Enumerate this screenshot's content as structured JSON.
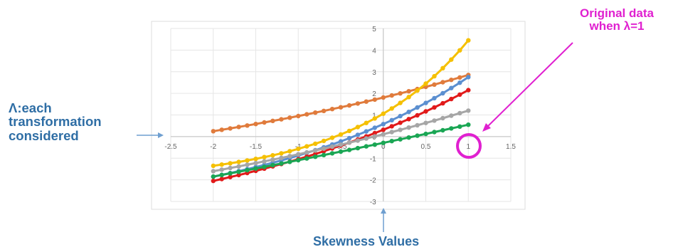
{
  "chart_data": {
    "type": "line",
    "xlim": [
      -2.5,
      1.5
    ],
    "ylim": [
      -3,
      5
    ],
    "x_ticks": [
      "-2.5",
      "-2",
      "-1.5",
      "-1",
      "-0.5",
      "0",
      "0.5",
      "1",
      "1.5"
    ],
    "y_ticks": [
      "-3",
      "-2",
      "-1",
      "0",
      "1",
      "2",
      "3",
      "4",
      "5"
    ],
    "grid": true,
    "series": [
      {
        "color": "#e07b3c",
        "x_range": [
          -2,
          1
        ],
        "points": 31,
        "start_y": 0.25,
        "end_y": 2.85,
        "curvature": 0.6
      },
      {
        "color": "#f5c000",
        "x_range": [
          -2,
          1
        ],
        "points": 31,
        "start_y": -1.35,
        "end_y": 4.45,
        "curvature": 2.2
      },
      {
        "color": "#5b8fd0",
        "x_range": [
          -2,
          1
        ],
        "points": 31,
        "start_y": -1.85,
        "end_y": 2.75,
        "curvature": 1.2
      },
      {
        "color": "#e11a1a",
        "x_range": [
          -2,
          1
        ],
        "points": 31,
        "start_y": -2.05,
        "end_y": 2.15,
        "curvature": 0.9
      },
      {
        "color": "#a6a6a6",
        "x_range": [
          -2,
          1
        ],
        "points": 31,
        "start_y": -1.6,
        "end_y": 1.2,
        "curvature": 0.5
      },
      {
        "color": "#1aa654",
        "x_range": [
          -2,
          1
        ],
        "points": 31,
        "start_y": -1.85,
        "end_y": 0.55,
        "curvature": 0.15
      }
    ]
  },
  "annotations": {
    "left_lines": [
      "Λ:each",
      "transformation",
      "considered"
    ],
    "right_lines": [
      "Original data",
      "when λ=1"
    ],
    "bottom": "Skewness Values",
    "blue_color": "#2f6ea5",
    "magenta_color": "#e020d0"
  }
}
